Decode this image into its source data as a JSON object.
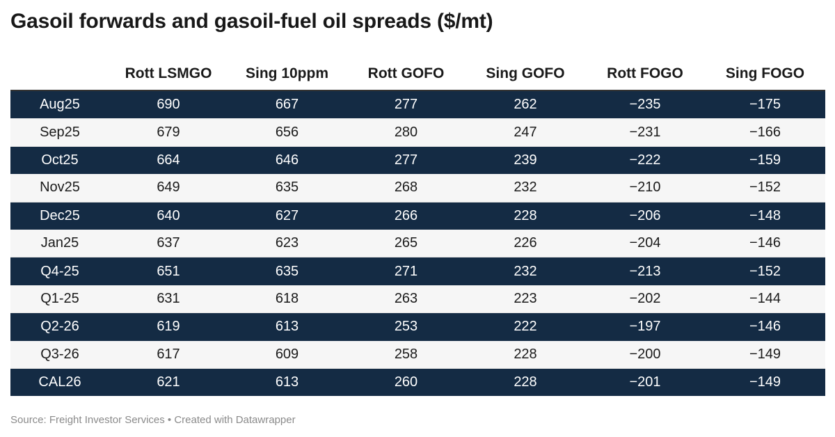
{
  "title": "Gasoil forwards and gasoil-fuel oil spreads ($/mt)",
  "footer": "Source: Freight Investor Services • Created with Datawrapper",
  "colors": {
    "dark_row": "#142b44",
    "light_row": "#f6f6f6",
    "header_rule": "#333333"
  },
  "chart_data": {
    "type": "table",
    "title": "Gasoil forwards and gasoil-fuel oil spreads ($/mt)",
    "columns": [
      "",
      "Rott LSMGO",
      "Sing 10ppm",
      "Rott GOFO",
      "Sing GOFO",
      "Rott FOGO",
      "Sing FOGO"
    ],
    "rows": [
      [
        "Aug25",
        "690",
        "667",
        "277",
        "262",
        "−235",
        "−175"
      ],
      [
        "Sep25",
        "679",
        "656",
        "280",
        "247",
        "−231",
        "−166"
      ],
      [
        "Oct25",
        "664",
        "646",
        "277",
        "239",
        "−222",
        "−159"
      ],
      [
        "Nov25",
        "649",
        "635",
        "268",
        "232",
        "−210",
        "−152"
      ],
      [
        "Dec25",
        "640",
        "627",
        "266",
        "228",
        "−206",
        "−148"
      ],
      [
        "Jan25",
        "637",
        "623",
        "265",
        "226",
        "−204",
        "−146"
      ],
      [
        "Q4-25",
        "651",
        "635",
        "271",
        "232",
        "−213",
        "−152"
      ],
      [
        "Q1-25",
        "631",
        "618",
        "263",
        "223",
        "−202",
        "−144"
      ],
      [
        "Q2-26",
        "619",
        "613",
        "253",
        "222",
        "−197",
        "−146"
      ],
      [
        "Q3-26",
        "617",
        "609",
        "258",
        "228",
        "−200",
        "−149"
      ],
      [
        "CAL26",
        "621",
        "613",
        "260",
        "228",
        "−201",
        "−149"
      ]
    ]
  }
}
